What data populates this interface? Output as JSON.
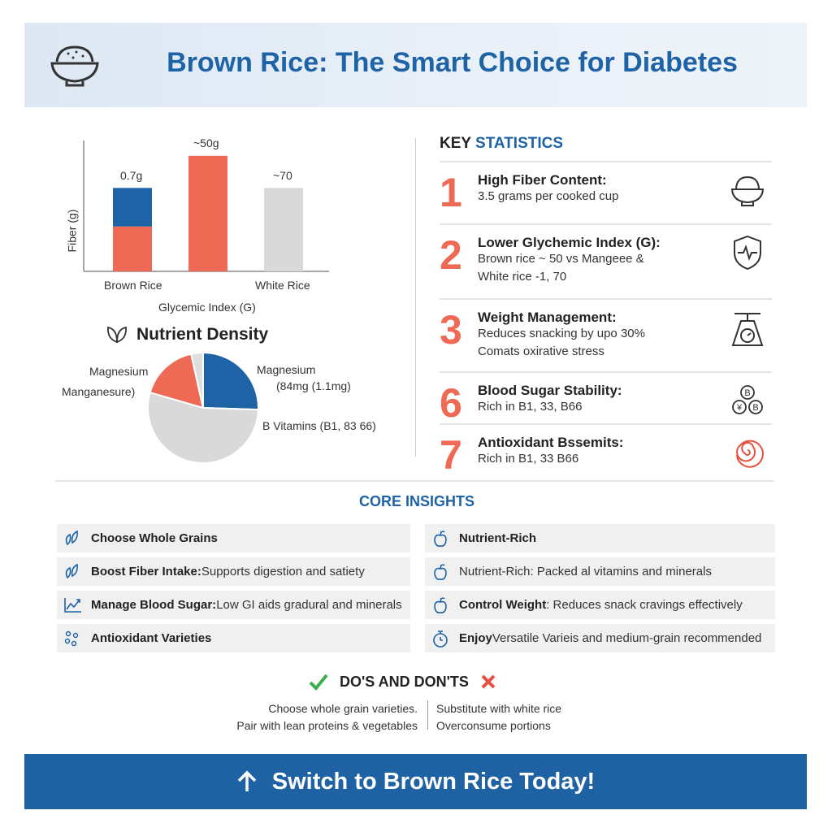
{
  "header": {
    "title": "Brown Rice: The Smart Choice for Diabetes",
    "icon": "rice-bowl-icon"
  },
  "bar_chart": {
    "ylabel": "Fiber (g)",
    "xlabel": "Glycemic Index (G)",
    "bars": [
      {
        "category": "Brown Rice",
        "value_label": "0.7g",
        "segments": [
          {
            "color": "#ee6a54",
            "relative_height": 0.35
          },
          {
            "color": "#1e63a6",
            "relative_height": 0.3
          }
        ]
      },
      {
        "category": "",
        "value_label": "~50g",
        "segments": [
          {
            "color": "#ee6a54",
            "relative_height": 0.9
          }
        ]
      },
      {
        "category": "White Rice",
        "value_label": "~70",
        "segments": [
          {
            "color": "#d9d9d9",
            "relative_height": 0.65
          }
        ]
      }
    ]
  },
  "nutrient": {
    "title": "Nutrient Density",
    "icon": "leaf-icon",
    "labels": {
      "left1": "Magnesium",
      "left2": "Manganesure)",
      "right1": "Magnesium",
      "right2": "(84mg (1.1mg)",
      "right3": "B Vitamins (B1, 83 66)"
    },
    "slices": [
      {
        "share": 25.5,
        "color": "#1e63a6"
      },
      {
        "share": 54,
        "color": "#d9d9d9"
      },
      {
        "share": 17,
        "color": "#ee6a54"
      },
      {
        "share": 3.5,
        "color": "#dedede"
      }
    ]
  },
  "key_stats": {
    "title_a": "KEY",
    "title_b": "STATISTICS",
    "items": [
      {
        "num": "1",
        "title": "High Fiber Content:",
        "lines": [
          "3.5 grams per cooked cup"
        ],
        "icon": "rice-bowl-icon"
      },
      {
        "num": "2",
        "title": "Lower Glychemic Index (G):",
        "lines": [
          "Brown rice ~ 50 vs Mangeee &",
          "White rice -1, 70"
        ],
        "icon": "shield-pulse-icon"
      },
      {
        "num": "3",
        "title": "Weight Management:",
        "lines": [
          "Reduces snacking by upo 30%",
          "Comats oxirative stress"
        ],
        "icon": "scale-icon"
      },
      {
        "num": "6",
        "title": "Blood Sugar Stability:",
        "lines": [
          "Rich in B1, 33, B66"
        ],
        "icon": "vitamin-b-icon"
      },
      {
        "num": "7",
        "title": "Antioxidant Bssemits:",
        "lines": [
          "Rich in B1, 33 B66"
        ],
        "icon": "spiral-icon"
      }
    ]
  },
  "core": {
    "title": "CORE INSIGHTS",
    "left": [
      {
        "bold": "Choose Whole Grains",
        "text": "",
        "icon": "leaf-icon"
      },
      {
        "bold": "Boost Fiber Intake:",
        "text": " Supports digestion and satiety",
        "icon": "leaf-icon"
      },
      {
        "bold": "Manage Blood Sugar:",
        "text": " Low GI aids gradural and minerals",
        "icon": "chart-up-icon"
      },
      {
        "bold": "Antioxidant Varieties",
        "text": "",
        "icon": "molecules-icon"
      }
    ],
    "right": [
      {
        "bold": "Nutrient-Rich",
        "text": "",
        "icon": "apple-icon"
      },
      {
        "bold": "",
        "text": "Nutrient-Rich: Packed al vitamins and minerals",
        "icon": "apple-icon"
      },
      {
        "bold": "Control Weight",
        "text": ": Reduces snack cravings effectively",
        "icon": "apple-icon"
      },
      {
        "bold": "Enjoy",
        "text": " Versatile Varieis and medium-grain recommended",
        "icon": "stopwatch-icon"
      }
    ]
  },
  "dos": {
    "title": "DO'S AND DON'TS",
    "do": [
      "Choose whole grain varieties.",
      "Pair with lean proteins & vegetables"
    ],
    "dont": [
      "Substitute with white rice",
      "Overconsume portions"
    ]
  },
  "cta": {
    "label": "Switch to Brown Rice Today!",
    "icon": "arrow-up-icon"
  },
  "colors": {
    "blue": "#1e63a6",
    "coral": "#ee6a54",
    "gray": "#d9d9d9"
  }
}
